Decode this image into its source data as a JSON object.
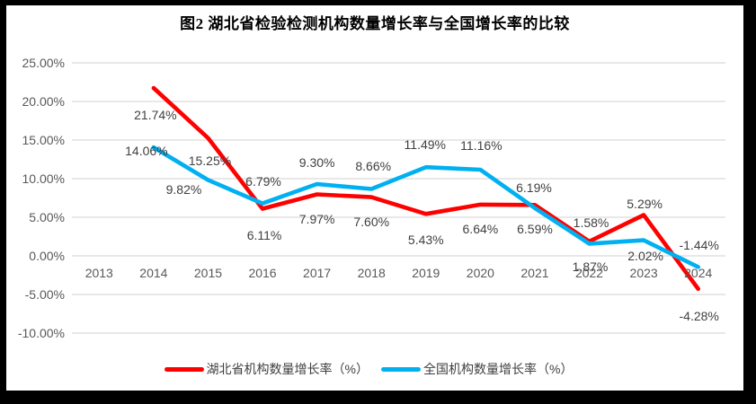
{
  "chart_data": {
    "type": "line",
    "title": "图2  湖北省检验检测机构数量增长率与全国增长率的比较",
    "categories": [
      "2013",
      "2014",
      "2015",
      "2016",
      "2017",
      "2018",
      "2019",
      "2020",
      "2021",
      "2022",
      "2023",
      "2024"
    ],
    "series": [
      {
        "name": "湖北省机构数量增长率（%）",
        "color": "#FF0000",
        "values": [
          null,
          21.74,
          15.25,
          6.11,
          7.97,
          7.6,
          5.43,
          6.64,
          6.59,
          1.87,
          5.29,
          -4.28
        ],
        "labels": [
          "",
          "21.74%",
          "15.25%",
          "6.11%",
          "7.97%",
          "7.60%",
          "5.43%",
          "6.64%",
          "6.59%",
          "1.87%",
          "5.29%",
          "-4.28%"
        ],
        "label_offsets": [
          [
            0,
            0
          ],
          [
            2,
            30
          ],
          [
            2,
            25
          ],
          [
            2,
            30
          ],
          [
            0,
            28
          ],
          [
            0,
            27
          ],
          [
            0,
            29
          ],
          [
            0,
            27
          ],
          [
            0,
            27
          ],
          [
            1,
            28
          ],
          [
            1,
            -13
          ],
          [
            1,
            30
          ]
        ]
      },
      {
        "name": "全国机构数量增长率（%）",
        "color": "#00B0F0",
        "values": [
          null,
          14.06,
          9.82,
          6.79,
          9.3,
          8.66,
          11.49,
          11.16,
          6.19,
          1.58,
          2.02,
          -1.44
        ],
        "labels": [
          "",
          "14.06%",
          "9.82%",
          "6.79%",
          "9.30%",
          "8.66%",
          "11.49%",
          "11.16%",
          "6.19%",
          "1.58%",
          "2.02%",
          "-1.44%"
        ],
        "label_offsets": [
          [
            0,
            0
          ],
          [
            -8,
            4
          ],
          [
            -27,
            10
          ],
          [
            1,
            -25
          ],
          [
            0,
            -24
          ],
          [
            2,
            -26
          ],
          [
            -1,
            -25
          ],
          [
            1,
            -27
          ],
          [
            -1,
            -23
          ],
          [
            2,
            -23
          ],
          [
            2,
            17
          ],
          [
            1,
            -24
          ]
        ]
      }
    ],
    "y_axis": {
      "min": -10,
      "max": 25,
      "step": 5,
      "tick_values": [
        25,
        20,
        15,
        10,
        5,
        0,
        -5,
        -10
      ],
      "tick_labels": [
        "25.00%",
        "20.00%",
        "15.00%",
        "10.00%",
        "5.00%",
        "0.00%",
        "-5.00%",
        "-10.00%"
      ]
    },
    "grid": true,
    "gridline_color": "#D9D9D9",
    "legend_position": "bottom"
  }
}
